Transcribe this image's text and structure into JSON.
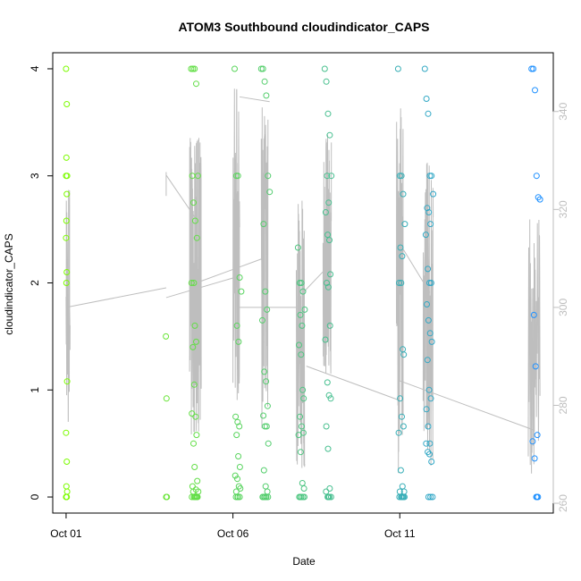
{
  "chart_data": {
    "type": "scatter",
    "title": "ATOM3 Southbound cloudindicator_CAPS",
    "xlabel": "Date",
    "ylabel": "cloudindicator_CAPS",
    "x_ticks": [
      {
        "label": "Oct 01",
        "day": 1
      },
      {
        "label": "Oct 06",
        "day": 6
      },
      {
        "label": "Oct 11",
        "day": 11
      }
    ],
    "xlim_days": [
      0.6,
      15.6
    ],
    "y_ticks": [
      "0",
      "1",
      "2",
      "3",
      "4"
    ],
    "ylim": [
      -0.15,
      4.15
    ],
    "y2_ticks": [
      "260",
      "280",
      "300",
      "320",
      "340"
    ],
    "y2lim": [
      258,
      352
    ],
    "grid": false,
    "legend": "none",
    "colors": {
      "points_start": "#7cfc00",
      "points_end": "#1e90ff",
      "line": "#bebebe",
      "axis": "#000000",
      "axis2": "#bebebe"
    },
    "series": [
      {
        "kind": "points",
        "x": [
          1.0,
          1.0,
          1.0,
          1.0,
          1.0,
          1.0,
          1.0,
          1.0,
          1.0,
          1.0,
          1.0,
          1.0,
          1.0,
          1.0,
          1.0,
          1.0,
          1.0,
          1.0,
          4.0,
          4.0,
          4.0,
          4.0,
          4.8,
          4.8,
          4.8,
          4.8,
          4.8,
          4.8,
          4.8,
          4.8,
          4.8,
          4.8,
          4.8,
          4.8,
          4.8,
          4.8,
          4.8,
          4.8,
          4.8,
          4.8,
          4.8,
          4.8,
          4.8,
          4.8,
          4.8,
          4.8,
          4.8,
          4.8,
          4.8,
          4.8,
          4.8,
          4.8,
          4.8,
          4.8,
          6.1,
          6.1,
          6.1,
          6.1,
          6.1,
          6.1,
          6.1,
          6.1,
          6.1,
          6.1,
          6.1,
          6.1,
          6.1,
          6.1,
          6.1,
          6.1,
          6.1,
          6.1,
          6.1,
          6.1,
          6.1,
          6.1,
          6.9,
          6.9,
          6.9,
          6.9,
          6.9,
          6.9,
          6.9,
          6.9,
          6.9,
          6.9,
          6.9,
          6.9,
          6.9,
          6.9,
          6.9,
          6.9,
          6.9,
          6.9,
          6.9,
          6.9,
          6.9,
          6.9,
          6.9,
          6.9,
          6.9,
          6.9,
          6.9,
          8.0,
          8.0,
          8.0,
          8.0,
          8.0,
          8.0,
          8.0,
          8.0,
          8.0,
          8.0,
          8.0,
          8.0,
          8.0,
          8.0,
          8.0,
          8.0,
          8.0,
          8.0,
          8.0,
          8.0,
          8.0,
          8.0,
          8.0,
          8.0,
          8.8,
          8.8,
          8.8,
          8.8,
          8.8,
          8.8,
          8.8,
          8.8,
          8.8,
          8.8,
          8.8,
          8.8,
          8.8,
          8.8,
          8.8,
          8.8,
          8.8,
          8.8,
          8.8,
          8.8,
          8.8,
          8.8,
          8.8,
          8.8,
          8.8,
          8.8,
          11.0,
          11.0,
          11.0,
          11.0,
          11.0,
          11.0,
          11.0,
          11.0,
          11.0,
          11.0,
          11.0,
          11.0,
          11.0,
          11.0,
          11.0,
          11.0,
          11.0,
          11.0,
          11.0,
          11.0,
          11.0,
          11.0,
          11.0,
          11.0,
          11.0,
          11.0,
          11.0,
          11.8,
          11.8,
          11.8,
          11.8,
          11.8,
          11.8,
          11.8,
          11.8,
          11.8,
          11.8,
          11.8,
          11.8,
          11.8,
          11.8,
          11.8,
          11.8,
          11.8,
          11.8,
          11.8,
          11.8,
          11.8,
          11.8,
          11.8,
          11.8,
          11.8,
          11.8,
          11.8,
          11.8,
          11.8,
          11.8,
          15.0,
          15.0,
          15.0,
          15.0,
          15.0,
          15.0,
          15.0,
          15.0,
          15.0,
          15.0,
          15.0,
          15.0,
          15.0,
          15.0
        ],
        "dx": [
          0,
          0.02,
          0.01,
          0.03,
          0,
          0.02,
          0.01,
          0,
          0.02,
          0.01,
          0.03,
          0,
          0.02,
          0.01,
          0.03,
          0,
          0.02,
          0.01,
          -0.01,
          0.01,
          0.02,
          0.0,
          -0.05,
          0.0,
          0.05,
          0.1,
          0.15,
          -0.02,
          0.02,
          0.07,
          0.12,
          0.03,
          -0.04,
          0.06,
          0.1,
          0.0,
          0.04,
          -0.03,
          0.08,
          0.11,
          0.02,
          0.05,
          0.13,
          -0.01,
          0.09,
          0.16,
          0.01,
          0.06,
          0.12,
          -0.03,
          0.07,
          0.14,
          0.03,
          0.1,
          -0.05,
          0.0,
          0.05,
          0.1,
          0.15,
          0.02,
          0.07,
          -0.02,
          0.04,
          0.09,
          0.01,
          0.06,
          0.11,
          -0.03,
          0.03,
          0.08,
          0.12,
          0.0,
          0.05,
          0.1,
          -0.01,
          0.04,
          -0.05,
          0.0,
          0.05,
          0.1,
          0.15,
          0.2,
          0.02,
          0.07,
          0.12,
          -0.02,
          0.04,
          0.09,
          0.14,
          0.01,
          0.06,
          0.11,
          0.16,
          0.03,
          0.08,
          0.13,
          0.0,
          0.05,
          0.1,
          -0.01,
          0.04,
          0.09,
          0.15,
          -0.05,
          0.0,
          0.05,
          0.1,
          0.15,
          0.02,
          0.07,
          -0.02,
          0.04,
          0.09,
          0.12,
          0.01,
          0.06,
          0.11,
          -0.03,
          0.03,
          0.08,
          0.13,
          0.0,
          0.05,
          0.1,
          -0.01,
          0.04,
          0.14,
          -0.05,
          0.0,
          0.05,
          0.1,
          0.15,
          0.02,
          0.07,
          -0.02,
          0.04,
          0.09,
          0.12,
          0.01,
          0.06,
          0.11,
          -0.03,
          0.03,
          0.08,
          0.13,
          0.0,
          0.05,
          0.1,
          -0.01,
          0.04,
          0.14,
          0.06,
          0.09,
          -0.05,
          0.0,
          0.05,
          0.1,
          0.15,
          0.02,
          0.07,
          -0.02,
          0.04,
          0.09,
          0.12,
          0.01,
          0.06,
          0.11,
          -0.03,
          0.03,
          0.08,
          0.13,
          0.0,
          0.05,
          0.1,
          -0.01,
          0.04,
          0.14,
          0.06,
          0.09,
          0.11,
          -0.05,
          0.0,
          0.05,
          0.1,
          0.15,
          0.2,
          0.02,
          0.07,
          0.12,
          -0.02,
          0.04,
          0.09,
          0.14,
          0.01,
          0.06,
          0.11,
          0.16,
          0.03,
          0.08,
          0.13,
          0.0,
          0.05,
          0.1,
          -0.01,
          0.04,
          0.09,
          0.15,
          0.18,
          0.06,
          0.12,
          -0.05,
          0.0,
          0.05,
          0.1,
          0.15,
          0.2,
          0.02,
          0.07,
          0.12,
          -0.02,
          0.04,
          0.09,
          0.14,
          0.11
        ],
        "y": [
          4.0,
          3.67,
          3.17,
          3.0,
          3.0,
          2.83,
          2.58,
          2.42,
          2.1,
          2.0,
          1.08,
          0.6,
          0.33,
          0.1,
          0.05,
          0.0,
          0.0,
          0.0,
          1.5,
          0.92,
          0.0,
          0.0,
          4.0,
          4.0,
          4.0,
          3.86,
          3.0,
          3.0,
          2.75,
          2.58,
          2.42,
          2.0,
          2.0,
          1.6,
          1.45,
          1.4,
          1.05,
          0.78,
          0.75,
          0.58,
          0.5,
          0.28,
          0.15,
          0.1,
          0.07,
          0.05,
          0.05,
          0.0,
          0.0,
          0.0,
          0.0,
          0.0,
          0.0,
          0.0,
          4.0,
          3.0,
          3.0,
          2.05,
          1.92,
          1.6,
          1.45,
          0.75,
          0.7,
          0.66,
          0.58,
          0.38,
          0.28,
          0.2,
          0.17,
          0.1,
          0.08,
          0.05,
          0.0,
          0.0,
          0.0,
          0.0,
          4.0,
          4.0,
          3.88,
          3.75,
          3.0,
          2.85,
          2.55,
          1.92,
          1.75,
          1.65,
          1.17,
          1.08,
          0.85,
          0.76,
          0.66,
          0.66,
          0.5,
          0.25,
          0.1,
          0.05,
          0.0,
          0.0,
          0.0,
          0.0,
          0.0,
          0.0,
          0.0,
          2.33,
          2.0,
          2.0,
          1.92,
          1.75,
          1.7,
          1.6,
          1.42,
          1.33,
          1.0,
          0.92,
          0.75,
          0.66,
          0.6,
          0.58,
          0.42,
          0.13,
          0.08,
          0.0,
          0.0,
          0.0,
          0.0,
          0.0,
          0.0,
          4.0,
          3.88,
          3.58,
          3.38,
          3.0,
          3.0,
          2.75,
          2.66,
          2.45,
          2.4,
          2.08,
          2.0,
          1.96,
          1.6,
          1.47,
          1.07,
          0.95,
          0.92,
          0.66,
          0.45,
          0.08,
          0.05,
          0.0,
          0.0,
          0.0,
          0.0,
          4.0,
          3.0,
          3.0,
          2.83,
          2.55,
          2.33,
          2.25,
          2.0,
          2.0,
          1.38,
          1.33,
          0.92,
          0.75,
          0.66,
          0.6,
          0.25,
          0.1,
          0.05,
          0.05,
          0.0,
          0.0,
          0.0,
          0.0,
          0.0,
          0.0,
          0.0,
          0.0,
          4.0,
          3.72,
          3.58,
          3.0,
          3.0,
          2.83,
          2.7,
          2.66,
          2.55,
          2.45,
          2.13,
          2.0,
          2.0,
          1.8,
          1.65,
          1.53,
          1.45,
          1.28,
          1.0,
          0.92,
          0.82,
          0.66,
          0.5,
          0.5,
          0.42,
          0.4,
          0.33,
          0.0,
          0.0,
          0.0,
          4.0,
          4.0,
          3.8,
          3.0,
          2.8,
          2.78,
          1.7,
          1.22,
          0.58,
          0.52,
          0.36,
          0.0,
          0.0,
          0.0
        ]
      },
      {
        "kind": "line_right_axis",
        "segments": [
          {
            "x0": 1.0,
            "x1": 1.12,
            "n": 30,
            "base": 300,
            "amp": 24,
            "seed": 1
          },
          {
            "x0": 4.0,
            "x1": 4.0,
            "n": 2,
            "base": 330,
            "amp": 10,
            "seed": 2
          },
          {
            "x0": 4.7,
            "x1": 5.05,
            "n": 90,
            "base": 305,
            "amp": 32,
            "seed": 3
          },
          {
            "x0": 6.0,
            "x1": 6.2,
            "n": 50,
            "base": 315,
            "amp": 34,
            "seed": 4
          },
          {
            "x0": 6.85,
            "x1": 7.05,
            "n": 55,
            "base": 308,
            "amp": 34,
            "seed": 5
          },
          {
            "x0": 7.9,
            "x1": 8.15,
            "n": 55,
            "base": 295,
            "amp": 28,
            "seed": 6
          },
          {
            "x0": 8.7,
            "x1": 8.95,
            "n": 60,
            "base": 310,
            "amp": 26,
            "seed": 7
          },
          {
            "x0": 10.9,
            "x1": 11.1,
            "n": 55,
            "base": 305,
            "amp": 40,
            "seed": 8
          },
          {
            "x0": 11.7,
            "x1": 12.0,
            "n": 60,
            "base": 298,
            "amp": 32,
            "seed": 9
          },
          {
            "x0": 14.85,
            "x1": 15.2,
            "n": 55,
            "base": 292,
            "amp": 26,
            "seed": 10
          }
        ],
        "connectors": [
          {
            "x0": 1.0,
            "y0": 300,
            "x1": 4.0,
            "y1": 304
          },
          {
            "x0": 4.0,
            "y0": 327,
            "x1": 4.9,
            "y1": 318
          },
          {
            "x0": 4.0,
            "y0": 302,
            "x1": 6.0,
            "y1": 306
          },
          {
            "x0": 4.9,
            "y0": 305,
            "x1": 6.9,
            "y1": 310
          },
          {
            "x0": 6.2,
            "y0": 343,
            "x1": 7.1,
            "y1": 342
          },
          {
            "x0": 6.2,
            "y0": 300,
            "x1": 8.1,
            "y1": 300
          },
          {
            "x0": 8.1,
            "y0": 303,
            "x1": 8.8,
            "y1": 308
          },
          {
            "x0": 8.2,
            "y0": 288,
            "x1": 11.0,
            "y1": 281
          },
          {
            "x0": 11.0,
            "y0": 313,
            "x1": 11.9,
            "y1": 303
          },
          {
            "x0": 11.0,
            "y0": 285,
            "x1": 15.0,
            "y1": 275
          }
        ]
      }
    ]
  }
}
